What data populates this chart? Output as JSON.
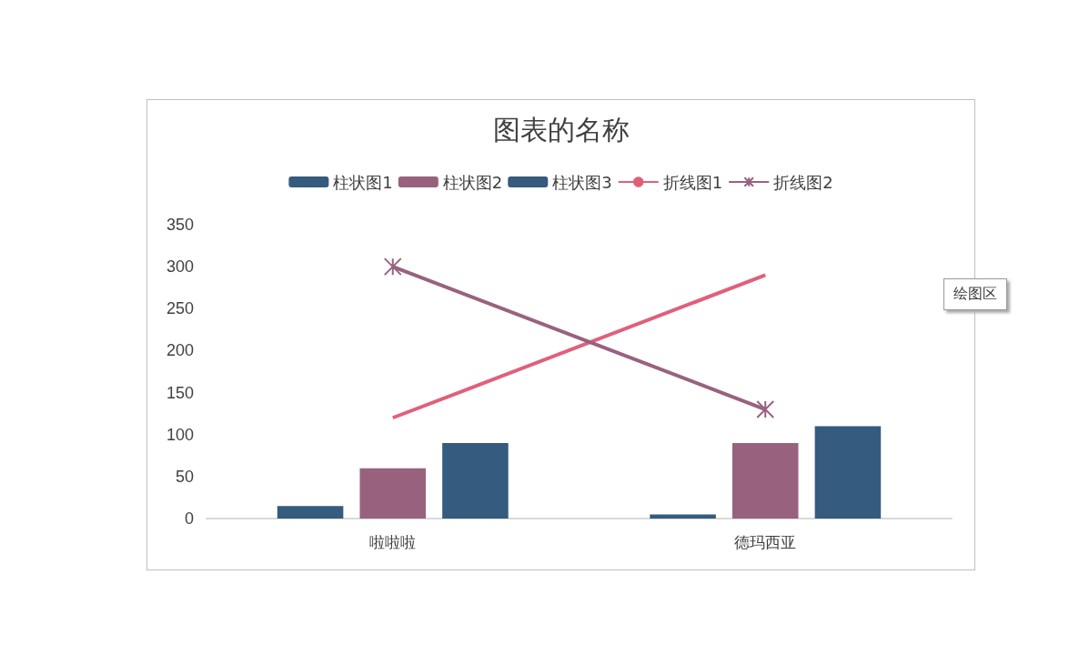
{
  "chart_data": {
    "type": "bar",
    "title": "图表的名称",
    "categories": [
      "啦啦啦",
      "德玛西亚"
    ],
    "series": [
      {
        "name": "柱状图1",
        "color": "#355b7e",
        "values": [
          15,
          5
        ]
      },
      {
        "name": "柱状图2",
        "color": "#98627f",
        "values": [
          60,
          90
        ]
      },
      {
        "name": "柱状图3",
        "color": "#355b7e",
        "values": [
          90,
          110
        ]
      },
      {
        "name": "折线图1",
        "type": "line",
        "color": "#e0607a",
        "values": [
          120,
          290
        ],
        "marker": "none"
      },
      {
        "name": "折线图2",
        "type": "line",
        "color": "#98627f",
        "values": [
          300,
          130
        ],
        "marker": "cross"
      }
    ],
    "ylim": [
      0,
      350
    ],
    "yticks": [
      0,
      50,
      100,
      150,
      200,
      250,
      300,
      350
    ],
    "grid": false,
    "legend": "top",
    "line_style": "solid",
    "annotations": [
      "绘图区"
    ]
  }
}
